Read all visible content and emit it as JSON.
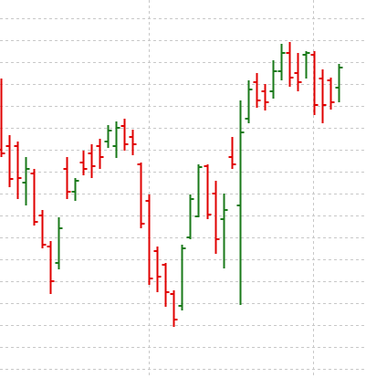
{
  "chart_data": {
    "type": "ohlc",
    "categories": [
      null,
      null,
      null,
      null,
      null,
      null,
      null,
      null,
      null,
      null,
      null,
      null,
      null,
      null,
      null,
      null,
      null,
      null,
      null,
      null,
      null,
      null,
      null,
      null,
      null,
      null,
      null,
      null,
      null,
      null,
      null,
      null,
      null,
      null,
      null,
      null,
      null,
      null,
      null,
      null,
      null,
      null
    ],
    "open": [
      250,
      254,
      254,
      214,
      224,
      178,
      144,
      126,
      229,
      204,
      236,
      246,
      254,
      259,
      254,
      276,
      264,
      234,
      194,
      139,
      124,
      92,
      79,
      154,
      177,
      232,
      202,
      174,
      242,
      189,
      284,
      324,
      314,
      314,
      336,
      356,
      334,
      354,
      354,
      328,
      326,
      318
    ],
    "high": [
      328,
      266,
      259,
      242,
      229,
      184,
      150,
      176,
      242,
      219,
      249,
      256,
      262,
      277,
      281,
      284,
      272,
      236,
      201,
      144,
      126,
      96,
      146,
      201,
      234,
      234,
      216,
      202,
      264,
      304,
      326,
      334,
      322,
      348,
      366,
      368,
      356,
      358,
      358,
      338,
      329,
      344
    ],
    "low": [
      242,
      209,
      196,
      189,
      167,
      142,
      92,
      119,
      196,
      194,
      222,
      219,
      229,
      252,
      241,
      249,
      244,
      164,
      102,
      94,
      78,
      56,
      74,
      152,
      176,
      174,
      136,
      120,
      229,
      80,
      279,
      296,
      293,
      306,
      326,
      319,
      314,
      328,
      288,
      279,
      294,
      302
    ],
    "close": [
      246,
      218,
      219,
      229,
      171,
      146,
      106,
      164,
      204,
      216,
      229,
      232,
      242,
      271,
      274,
      256,
      256,
      169,
      109,
      111,
      94,
      64,
      142,
      196,
      231,
      179,
      152,
      184,
      234,
      269,
      316,
      304,
      302,
      336,
      356,
      329,
      324,
      356,
      299,
      299,
      302,
      340
    ],
    "up_color": "#1a7a1a",
    "down_color": "#e00000",
    "ylim": [
      0,
      414
    ],
    "yticks": [
      394,
      370,
      346,
      322,
      298,
      274,
      250,
      226,
      202,
      178,
      154,
      130,
      106,
      82,
      58,
      34,
      10
    ],
    "grid": true
  }
}
